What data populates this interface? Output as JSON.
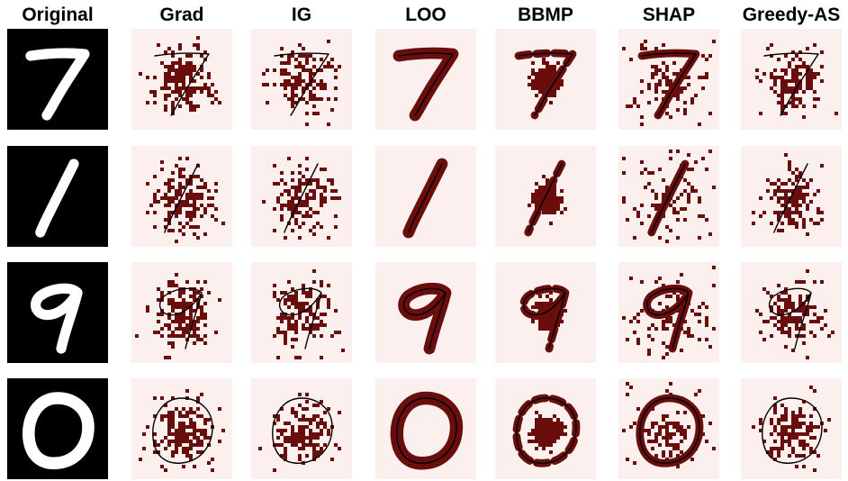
{
  "figure": {
    "column_headers": [
      "Original",
      "Grad",
      "IG",
      "LOO",
      "BBMP",
      "SHAP",
      "Greedy-AS"
    ],
    "row_digits": [
      "7",
      "1",
      "9",
      "0"
    ],
    "colors": {
      "original_background": "#000000",
      "original_digit": "#ffffff",
      "heatmap_background": "#fbf0ee",
      "attribution_highlight": "#690d0d",
      "digit_outline": "#000000"
    }
  }
}
